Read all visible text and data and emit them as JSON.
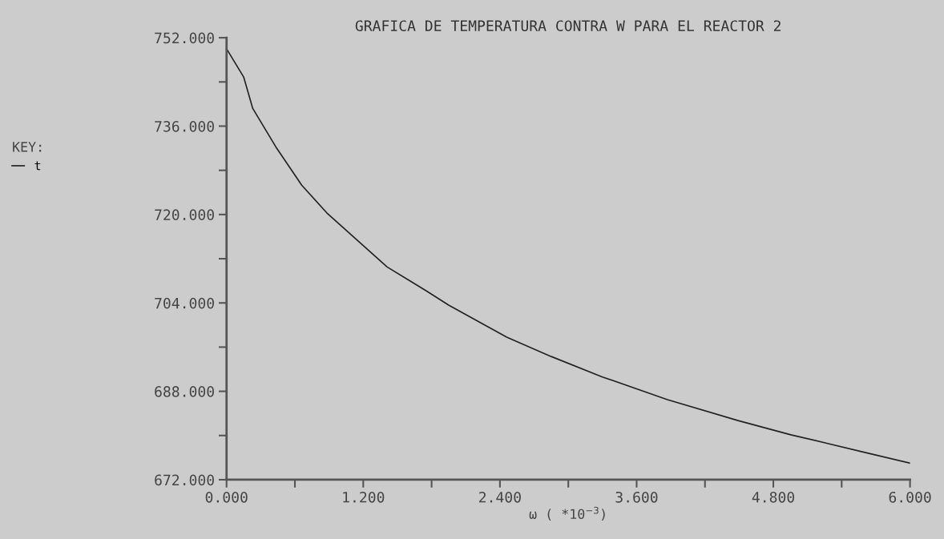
{
  "chart_data": {
    "type": "line",
    "title": "GRAFICA DE TEMPERATURA CONTRA W PARA EL REACTOR 2",
    "xlabel": "ω ( *10$^{−3}$)",
    "legend_title": "KEY:",
    "legend": "left",
    "grid": false,
    "marker": "none",
    "line_style": "solid",
    "series": [
      {
        "name": "t",
        "color": "#222222",
        "x": [
          0,
          0.15,
          0.23,
          0.44,
          0.66,
          0.88,
          1.09,
          1.41,
          1.76,
          1.95,
          2.46,
          2.85,
          3.3,
          3.87,
          4.49,
          4.96,
          5.27,
          5.61,
          6
        ],
        "values": [
          750,
          744.9,
          739.2,
          732,
          725.3,
          720.3,
          716.4,
          710.5,
          706.1,
          703.6,
          697.8,
          694.3,
          690.6,
          686.5,
          682.7,
          680.1,
          678.6,
          676.9,
          675
        ]
      }
    ],
    "xlim": [
      0,
      6
    ],
    "ylim": [
      672,
      752
    ],
    "xticks": [
      {
        "value": 0,
        "label": "0.000"
      },
      {
        "value": 0.6,
        "label": null
      },
      {
        "value": 1.2,
        "label": "1.200"
      },
      {
        "value": 1.8,
        "label": null
      },
      {
        "value": 2.4,
        "label": "2.400"
      },
      {
        "value": 3.0,
        "label": null
      },
      {
        "value": 3.6,
        "label": "3.600"
      },
      {
        "value": 4.2,
        "label": null
      },
      {
        "value": 4.8,
        "label": "4.800"
      },
      {
        "value": 5.4,
        "label": null
      },
      {
        "value": 6,
        "label": "6.000"
      }
    ],
    "yticks": [
      {
        "value": 672,
        "label": "672.000"
      },
      {
        "value": 680,
        "label": null
      },
      {
        "value": 688,
        "label": "688.000"
      },
      {
        "value": 696,
        "label": null
      },
      {
        "value": 704,
        "label": "704.000"
      },
      {
        "value": 712,
        "label": null
      },
      {
        "value": 720,
        "label": "720.000"
      },
      {
        "value": 728,
        "label": null
      },
      {
        "value": 736,
        "label": "736.000"
      },
      {
        "value": 744,
        "label": null
      },
      {
        "value": 752,
        "label": "752.000"
      }
    ]
  }
}
